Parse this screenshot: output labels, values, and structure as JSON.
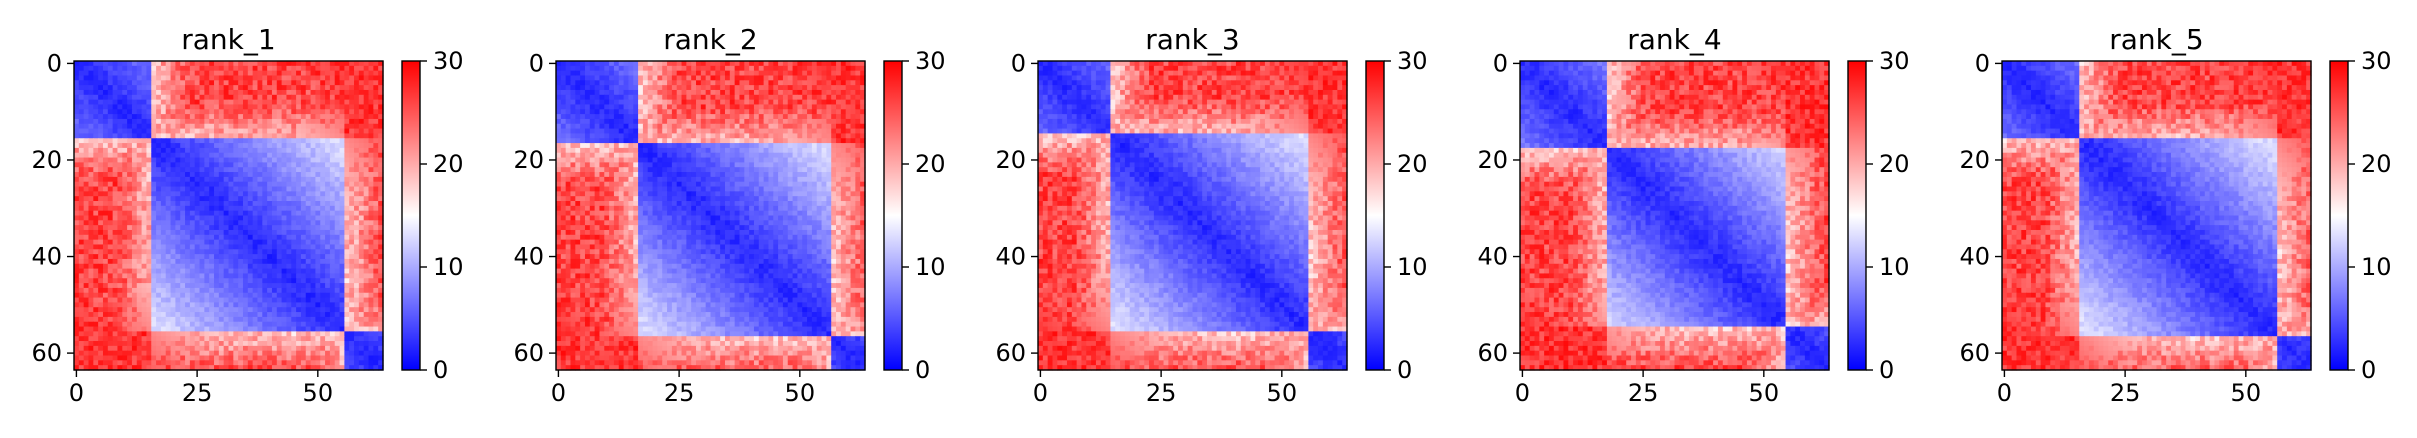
{
  "chart_data": [
    {
      "type": "heatmap",
      "title": "rank_1",
      "x_ticks": [
        0,
        25,
        50
      ],
      "y_ticks": [
        0,
        20,
        40,
        60
      ],
      "xlim": [
        0,
        63
      ],
      "ylim": [
        63,
        0
      ],
      "colorbar": {
        "ticks": [
          0,
          10,
          20,
          30
        ],
        "range": [
          0,
          30
        ],
        "colormap": "bwr"
      },
      "matrix_size": 64,
      "blocks": [
        {
          "rows": [
            0,
            16
          ],
          "cols": [
            0,
            16
          ],
          "level": "low"
        },
        {
          "rows": [
            16,
            56
          ],
          "cols": [
            16,
            56
          ],
          "level": "low"
        },
        {
          "rows": [
            56,
            64
          ],
          "cols": [
            56,
            64
          ],
          "level": "low"
        },
        {
          "rows": [
            0,
            16
          ],
          "cols": [
            16,
            64
          ],
          "level": "high"
        },
        {
          "rows": [
            56,
            64
          ],
          "cols": [
            0,
            56
          ],
          "level": "high"
        }
      ]
    },
    {
      "type": "heatmap",
      "title": "rank_2",
      "x_ticks": [
        0,
        25,
        50
      ],
      "y_ticks": [
        0,
        20,
        40,
        60
      ],
      "xlim": [
        0,
        63
      ],
      "ylim": [
        63,
        0
      ],
      "colorbar": {
        "ticks": [
          0,
          10,
          20,
          30
        ],
        "range": [
          0,
          30
        ],
        "colormap": "bwr"
      },
      "matrix_size": 64
    },
    {
      "type": "heatmap",
      "title": "rank_3",
      "x_ticks": [
        0,
        25,
        50
      ],
      "y_ticks": [
        0,
        20,
        40,
        60
      ],
      "xlim": [
        0,
        63
      ],
      "ylim": [
        63,
        0
      ],
      "colorbar": {
        "ticks": [
          0,
          10,
          20,
          30
        ],
        "range": [
          0,
          30
        ],
        "colormap": "bwr"
      },
      "matrix_size": 64
    },
    {
      "type": "heatmap",
      "title": "rank_4",
      "x_ticks": [
        0,
        25,
        50
      ],
      "y_ticks": [
        0,
        20,
        40,
        60
      ],
      "xlim": [
        0,
        63
      ],
      "ylim": [
        63,
        0
      ],
      "colorbar": {
        "ticks": [
          0,
          10,
          20,
          30
        ],
        "range": [
          0,
          30
        ],
        "colormap": "bwr"
      },
      "matrix_size": 64
    },
    {
      "type": "heatmap",
      "title": "rank_5",
      "x_ticks": [
        0,
        25,
        50
      ],
      "y_ticks": [
        0,
        20,
        40,
        60
      ],
      "xlim": [
        0,
        63
      ],
      "ylim": [
        63,
        0
      ],
      "colorbar": {
        "ticks": [
          0,
          10,
          20,
          30
        ],
        "range": [
          0,
          30
        ],
        "colormap": "bwr"
      },
      "matrix_size": 64
    }
  ],
  "colors": {
    "low": "#0000ff",
    "mid": "#ffffff",
    "high": "#ff0000"
  }
}
